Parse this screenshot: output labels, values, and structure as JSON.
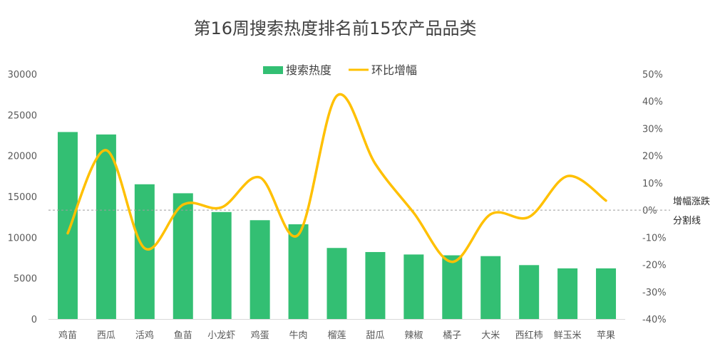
{
  "chart_data": {
    "type": "bar",
    "title": "第16周搜索热度排名前15农产品品类",
    "categories": [
      "鸡苗",
      "西瓜",
      "活鸡",
      "鱼苗",
      "小龙虾",
      "鸡蛋",
      "牛肉",
      "榴莲",
      "甜瓜",
      "辣椒",
      "橘子",
      "大米",
      "西红柿",
      "鲜玉米",
      "苹果"
    ],
    "series": [
      {
        "name": "搜索热度",
        "type": "bar",
        "axis": "left",
        "color": "#33bf73",
        "values": [
          22900,
          22600,
          16500,
          15400,
          13100,
          12100,
          11600,
          8700,
          8200,
          7900,
          7800,
          7700,
          6600,
          6200,
          6200
        ]
      },
      {
        "name": "环比增幅",
        "type": "line",
        "axis": "right",
        "color": "#ffc000",
        "unit": "%",
        "values": [
          -8.5,
          22,
          -14,
          2,
          1,
          12,
          -9,
          42,
          17,
          -1,
          -19,
          -1.5,
          -2.5,
          12.5,
          3.5
        ]
      }
    ],
    "left_axis": {
      "ylim": [
        0,
        30000
      ],
      "ticks": [
        "0",
        "5000",
        "10000",
        "15000",
        "20000",
        "25000",
        "30000"
      ]
    },
    "right_axis": {
      "ylim": [
        -40,
        50
      ],
      "ticks": [
        "-40%",
        "-30%",
        "-20%",
        "-10%",
        "0%",
        "10%",
        "20%",
        "30%",
        "40%",
        "50%"
      ]
    },
    "reference_line": {
      "value": 0,
      "axis": "right",
      "style": "dashed",
      "label_line1": "增幅涨跌",
      "label_line2": "分割线"
    },
    "legend_position": "top",
    "grid": false
  }
}
